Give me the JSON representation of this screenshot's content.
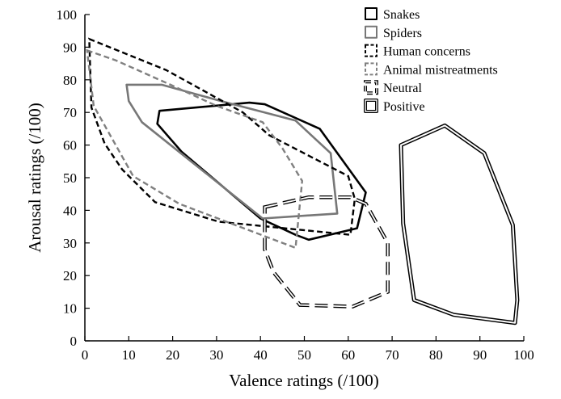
{
  "chart_data": {
    "type": "area",
    "xlabel": "Valence ratings (/100)",
    "ylabel": "Arousal ratings (/100)",
    "xlim": [
      0,
      100
    ],
    "ylim": [
      0,
      100
    ],
    "x_ticks": [
      "0",
      "10",
      "20",
      "30",
      "40",
      "50",
      "60",
      "70",
      "80",
      "90",
      "100"
    ],
    "y_ticks": [
      "0",
      "10",
      "20",
      "30",
      "40",
      "50",
      "60",
      "70",
      "80",
      "90",
      "100"
    ],
    "grid": false,
    "legend_position": "top-right",
    "series": [
      {
        "name": "Snakes",
        "color": "#000000",
        "style": "solid",
        "points": [
          [
            17,
            70.5
          ],
          [
            37.5,
            73
          ],
          [
            41,
            72.5
          ],
          [
            53.5,
            65
          ],
          [
            64,
            45.5
          ],
          [
            62,
            34.5
          ],
          [
            51,
            31
          ],
          [
            48,
            32.5
          ],
          [
            40,
            37.5
          ],
          [
            22,
            58
          ],
          [
            16.5,
            66.5
          ]
        ]
      },
      {
        "name": "Spiders",
        "color": "#777777",
        "style": "solid",
        "points": [
          [
            9.5,
            78.5
          ],
          [
            17.5,
            78.5
          ],
          [
            31,
            73.5
          ],
          [
            48,
            67.5
          ],
          [
            56,
            57.5
          ],
          [
            57.5,
            39
          ],
          [
            40.5,
            37.5
          ],
          [
            13,
            67
          ],
          [
            10,
            73.5
          ]
        ]
      },
      {
        "name": "Human concerns",
        "color": "#000000",
        "style": "dashed",
        "points": [
          [
            1,
            92.5
          ],
          [
            18.5,
            83
          ],
          [
            36,
            70
          ],
          [
            42,
            63
          ],
          [
            60,
            50.5
          ],
          [
            61.5,
            43.5
          ],
          [
            60.5,
            32.5
          ],
          [
            30.5,
            36.5
          ],
          [
            16,
            42.5
          ],
          [
            8.5,
            52.5
          ],
          [
            4.5,
            60.5
          ],
          [
            1.5,
            71.5
          ]
        ]
      },
      {
        "name": "Animal mistreatments",
        "color": "#808080",
        "style": "dashed",
        "points": [
          [
            0.5,
            89
          ],
          [
            7,
            86
          ],
          [
            19.5,
            78.5
          ],
          [
            30,
            72
          ],
          [
            40.5,
            67
          ],
          [
            45,
            59
          ],
          [
            49.5,
            49
          ],
          [
            48,
            28.5
          ],
          [
            21.5,
            42
          ],
          [
            11,
            50.5
          ],
          [
            2,
            72
          ]
        ]
      },
      {
        "name": "Neutral",
        "color": "#000000",
        "style": "longdash-double",
        "points": [
          [
            41,
            41
          ],
          [
            51,
            44
          ],
          [
            60.5,
            44
          ],
          [
            64,
            42
          ],
          [
            69,
            30
          ],
          [
            69,
            15
          ],
          [
            61,
            10.5
          ],
          [
            49,
            11
          ],
          [
            43,
            21
          ],
          [
            41,
            28
          ]
        ]
      },
      {
        "name": "Positive",
        "color": "#000000",
        "style": "double",
        "points": [
          [
            72,
            60
          ],
          [
            82,
            66
          ],
          [
            91,
            57.5
          ],
          [
            97.5,
            35.5
          ],
          [
            98.5,
            12.5
          ],
          [
            98,
            5.5
          ],
          [
            84,
            8
          ],
          [
            75,
            12.5
          ],
          [
            72.5,
            36
          ]
        ]
      }
    ]
  }
}
